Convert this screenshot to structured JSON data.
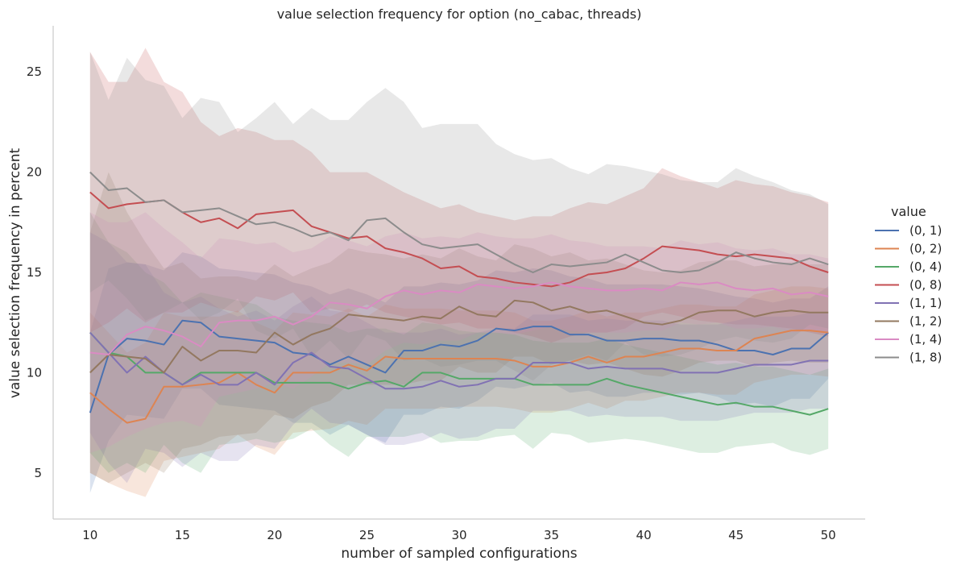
{
  "chart_data": {
    "type": "line",
    "title": "value selection frequency for option (no_cabac, threads)",
    "xlabel": "number of sampled configurations",
    "ylabel": "value selection frequency in percent",
    "xlim": [
      8.0,
      52.0
    ],
    "ylim": [
      2.7,
      27.3
    ],
    "xticks": [
      10,
      15,
      20,
      25,
      30,
      35,
      40,
      45,
      50
    ],
    "yticks": [
      5,
      10,
      15,
      20,
      25
    ],
    "grid": false,
    "legend": {
      "title": "value",
      "placement": "right"
    },
    "x": [
      10,
      11,
      12,
      13,
      14,
      15,
      16,
      17,
      18,
      19,
      20,
      21,
      22,
      23,
      24,
      25,
      26,
      27,
      28,
      29,
      30,
      31,
      32,
      33,
      34,
      35,
      36,
      37,
      38,
      39,
      40,
      41,
      42,
      43,
      44,
      45,
      46,
      47,
      48,
      49,
      50
    ],
    "series": [
      {
        "name": "(0, 1)",
        "color": "#4c72b0",
        "values": [
          8.0,
          10.9,
          11.7,
          11.6,
          11.4,
          12.6,
          12.5,
          11.8,
          11.7,
          11.6,
          11.5,
          11.0,
          10.9,
          10.4,
          10.8,
          10.4,
          10.0,
          11.1,
          11.1,
          11.4,
          11.3,
          11.6,
          12.2,
          12.1,
          12.3,
          12.3,
          11.9,
          11.9,
          11.6,
          11.6,
          11.7,
          11.7,
          11.6,
          11.6,
          11.4,
          11.1,
          11.1,
          10.9,
          11.2,
          11.2,
          12.0
        ],
        "upper": [
          12.0,
          15.2,
          15.5,
          15.4,
          15.1,
          16.0,
          15.8,
          15.2,
          15.1,
          15.0,
          14.9,
          14.5,
          14.3,
          13.9,
          14.2,
          13.9,
          13.5,
          14.3,
          14.3,
          14.5,
          14.4,
          14.6,
          15.1,
          15.0,
          15.2,
          15.1,
          14.8,
          14.7,
          14.4,
          14.4,
          14.4,
          14.4,
          14.3,
          14.2,
          14.0,
          13.8,
          13.7,
          13.5,
          13.7,
          13.7,
          14.3
        ],
        "lower": [
          4.0,
          6.6,
          7.9,
          7.8,
          7.7,
          9.2,
          9.2,
          8.4,
          8.3,
          8.2,
          8.1,
          7.5,
          7.5,
          6.9,
          7.4,
          6.9,
          6.5,
          7.9,
          7.9,
          8.3,
          8.2,
          8.6,
          9.3,
          9.2,
          9.4,
          9.5,
          9.0,
          9.1,
          8.8,
          8.8,
          9.0,
          9.0,
          8.9,
          9.0,
          8.8,
          8.4,
          8.5,
          8.3,
          8.7,
          8.7,
          9.7
        ]
      },
      {
        "name": "(0, 2)",
        "color": "#dd8452",
        "values": [
          9.0,
          8.2,
          7.5,
          7.7,
          9.3,
          9.3,
          9.4,
          9.5,
          10.0,
          9.4,
          9.0,
          10.0,
          10.0,
          10.0,
          10.4,
          10.1,
          10.8,
          10.7,
          10.7,
          10.7,
          10.7,
          10.7,
          10.7,
          10.6,
          10.3,
          10.3,
          10.5,
          10.8,
          10.5,
          10.8,
          10.8,
          11.0,
          11.2,
          11.2,
          11.1,
          11.1,
          11.7,
          11.9,
          12.1,
          12.1,
          12.0
        ],
        "upper": [
          13.0,
          12.0,
          11.0,
          11.5,
          13.0,
          12.8,
          12.8,
          12.8,
          13.1,
          12.5,
          12.1,
          13.0,
          12.9,
          12.8,
          13.2,
          12.8,
          13.4,
          13.2,
          13.2,
          13.2,
          13.1,
          13.1,
          13.1,
          13.0,
          12.6,
          12.6,
          12.8,
          13.1,
          12.8,
          13.0,
          13.0,
          13.2,
          13.4,
          13.4,
          13.3,
          13.3,
          13.9,
          14.1,
          14.3,
          14.3,
          14.2
        ],
        "lower": [
          5.0,
          4.5,
          4.1,
          3.8,
          5.6,
          5.8,
          6.0,
          6.2,
          6.9,
          6.3,
          5.9,
          7.0,
          7.1,
          7.2,
          7.6,
          7.4,
          8.2,
          8.2,
          8.2,
          8.2,
          8.3,
          8.3,
          8.3,
          8.2,
          8.0,
          8.0,
          8.2,
          8.5,
          8.2,
          8.6,
          8.6,
          8.8,
          9.0,
          9.0,
          8.9,
          8.9,
          9.5,
          9.7,
          9.9,
          9.9,
          9.8
        ]
      },
      {
        "name": "(0, 4)",
        "color": "#55a868",
        "values": [
          12.0,
          11.0,
          10.8,
          10.0,
          10.0,
          9.4,
          10.0,
          10.0,
          10.0,
          10.0,
          9.5,
          9.5,
          9.5,
          9.5,
          9.2,
          9.5,
          9.6,
          9.3,
          10.0,
          10.0,
          9.7,
          9.7,
          9.7,
          9.7,
          9.4,
          9.4,
          9.4,
          9.4,
          9.7,
          9.4,
          9.2,
          9.0,
          8.8,
          8.6,
          8.4,
          8.5,
          8.3,
          8.3,
          8.1,
          7.9,
          8.2
        ],
        "upper": [
          18.0,
          16.5,
          16.0,
          15.0,
          14.5,
          13.5,
          14.0,
          13.8,
          13.6,
          13.4,
          12.8,
          12.6,
          12.5,
          12.4,
          12.0,
          12.2,
          12.2,
          11.9,
          12.5,
          12.4,
          12.1,
          12.0,
          12.0,
          11.9,
          11.6,
          11.5,
          11.5,
          11.5,
          11.7,
          11.4,
          11.2,
          11.0,
          10.8,
          10.6,
          10.4,
          10.5,
          10.3,
          10.3,
          10.1,
          9.9,
          10.2
        ],
        "lower": [
          6.0,
          5.0,
          5.5,
          5.0,
          6.4,
          5.5,
          5.0,
          6.4,
          6.5,
          6.7,
          6.5,
          6.7,
          7.2,
          6.4,
          5.8,
          6.8,
          6.8,
          6.8,
          7.0,
          6.5,
          6.6,
          6.6,
          6.8,
          6.9,
          6.2,
          7.0,
          6.9,
          6.5,
          6.6,
          6.7,
          6.6,
          6.4,
          6.2,
          6.0,
          6.0,
          6.3,
          6.4,
          6.5,
          6.1,
          5.9,
          6.2
        ]
      },
      {
        "name": "(0, 8)",
        "color": "#c44e52",
        "values": [
          19.0,
          18.2,
          18.4,
          18.5,
          18.6,
          18.0,
          17.5,
          17.7,
          17.2,
          17.9,
          18.0,
          18.1,
          17.3,
          17.0,
          16.7,
          16.8,
          16.2,
          16.0,
          15.7,
          15.2,
          15.3,
          14.8,
          14.7,
          14.5,
          14.4,
          14.3,
          14.5,
          14.9,
          15.0,
          15.2,
          15.7,
          16.3,
          16.2,
          16.1,
          15.9,
          15.8,
          15.9,
          15.8,
          15.7,
          15.3,
          15.0
        ],
        "upper": [
          26.0,
          24.5,
          24.5,
          26.2,
          24.5,
          24.0,
          22.5,
          21.8,
          22.2,
          22.0,
          21.6,
          21.6,
          21.0,
          20.0,
          20.0,
          20.0,
          19.5,
          19.0,
          18.6,
          18.2,
          18.4,
          18.0,
          17.8,
          17.6,
          17.8,
          17.8,
          18.2,
          18.5,
          18.4,
          18.8,
          19.2,
          20.2,
          19.8,
          19.5,
          19.2,
          19.6,
          19.4,
          19.3,
          19.0,
          18.8,
          18.5
        ],
        "lower": [
          12.0,
          12.5,
          13.2,
          12.5,
          13.0,
          13.0,
          13.5,
          13.2,
          13.0,
          13.8,
          13.6,
          14.0,
          13.0,
          13.2,
          13.0,
          13.4,
          13.0,
          12.8,
          12.6,
          12.4,
          12.5,
          12.2,
          12.2,
          12.0,
          11.8,
          11.5,
          11.8,
          12.0,
          12.0,
          12.2,
          12.8,
          13.0,
          12.8,
          12.6,
          12.5,
          12.4,
          12.4,
          12.3,
          12.2,
          12.0,
          11.8
        ]
      },
      {
        "name": "(1, 1)",
        "color": "#8172b3",
        "values": [
          12.0,
          11.0,
          10.0,
          10.8,
          10.0,
          9.4,
          9.9,
          9.4,
          9.4,
          10.0,
          9.4,
          10.5,
          11.0,
          10.3,
          10.2,
          9.7,
          9.2,
          9.2,
          9.3,
          9.6,
          9.3,
          9.4,
          9.7,
          9.7,
          10.5,
          10.5,
          10.5,
          10.2,
          10.3,
          10.2,
          10.2,
          10.2,
          10.0,
          10.0,
          10.0,
          10.2,
          10.4,
          10.4,
          10.4,
          10.6,
          10.6
        ],
        "upper": [
          17.0,
          16.5,
          15.5,
          15.4,
          14.0,
          13.5,
          13.8,
          13.2,
          12.8,
          13.1,
          12.6,
          13.3,
          13.8,
          13.1,
          13.0,
          12.5,
          12.0,
          12.0,
          12.0,
          12.2,
          11.9,
          12.0,
          12.2,
          12.2,
          12.9,
          12.9,
          12.9,
          12.6,
          12.7,
          12.6,
          12.6,
          12.6,
          12.4,
          12.4,
          12.4,
          12.6,
          12.8,
          12.8,
          12.8,
          13.0,
          13.0
        ],
        "lower": [
          7.0,
          5.5,
          4.5,
          6.2,
          6.0,
          5.3,
          6.0,
          5.6,
          5.6,
          6.4,
          6.2,
          7.4,
          8.2,
          7.5,
          7.4,
          6.9,
          6.4,
          6.4,
          6.6,
          7.0,
          6.7,
          6.8,
          7.2,
          7.2,
          8.1,
          8.1,
          8.1,
          7.8,
          7.9,
          7.8,
          7.8,
          7.8,
          7.6,
          7.6,
          7.6,
          7.8,
          8.0,
          8.0,
          8.0,
          8.2,
          8.2
        ]
      },
      {
        "name": "(1, 2)",
        "color": "#937860",
        "values": [
          10.0,
          10.9,
          10.8,
          10.7,
          10.0,
          11.3,
          10.6,
          11.1,
          11.1,
          11.0,
          12.0,
          11.4,
          11.9,
          12.2,
          12.9,
          12.8,
          12.7,
          12.6,
          12.8,
          12.7,
          13.3,
          12.9,
          12.8,
          13.6,
          13.5,
          13.1,
          13.3,
          13.0,
          13.1,
          12.8,
          12.5,
          12.4,
          12.6,
          13.0,
          13.1,
          13.1,
          12.8,
          13.0,
          13.1,
          13.0,
          13.0
        ],
        "upper": [
          17.0,
          20.0,
          18.0,
          16.5,
          15.2,
          15.5,
          14.7,
          14.8,
          14.8,
          14.6,
          15.4,
          14.8,
          15.2,
          15.5,
          16.2,
          16.0,
          15.9,
          15.7,
          15.9,
          15.7,
          16.2,
          15.8,
          15.6,
          16.4,
          16.2,
          15.8,
          16.0,
          15.6,
          15.7,
          15.4,
          15.1,
          15.0,
          15.1,
          15.5,
          15.6,
          15.6,
          15.3,
          15.4,
          15.5,
          15.4,
          15.4
        ],
        "lower": [
          5.0,
          4.5,
          5.0,
          5.5,
          5.0,
          6.2,
          6.4,
          6.8,
          6.9,
          7.0,
          7.9,
          7.7,
          8.3,
          8.6,
          9.4,
          9.4,
          9.4,
          9.4,
          9.6,
          9.6,
          10.3,
          10.0,
          10.0,
          10.8,
          10.8,
          10.4,
          10.6,
          10.4,
          10.5,
          10.2,
          9.9,
          9.8,
          10.1,
          10.5,
          10.6,
          10.6,
          10.3,
          10.5,
          10.6,
          10.5,
          10.5
        ]
      },
      {
        "name": "(1, 4)",
        "color": "#da8bc3",
        "values": [
          11.0,
          10.9,
          11.9,
          12.3,
          12.1,
          11.8,
          11.3,
          12.5,
          12.6,
          12.6,
          12.8,
          12.4,
          12.8,
          13.5,
          13.4,
          13.2,
          13.8,
          14.1,
          13.9,
          14.1,
          14.0,
          14.4,
          14.3,
          14.2,
          14.3,
          14.5,
          14.3,
          14.2,
          14.1,
          14.1,
          14.2,
          14.1,
          14.5,
          14.4,
          14.5,
          14.2,
          14.1,
          14.2,
          13.9,
          14.0,
          13.8
        ],
        "upper": [
          18.0,
          17.5,
          17.5,
          18.0,
          17.2,
          16.5,
          15.7,
          16.7,
          16.6,
          16.4,
          16.5,
          16.0,
          16.2,
          16.8,
          16.6,
          16.3,
          16.8,
          17.0,
          16.7,
          16.8,
          16.7,
          17.0,
          16.8,
          16.7,
          16.7,
          16.9,
          16.6,
          16.5,
          16.3,
          16.3,
          16.3,
          16.2,
          16.6,
          16.4,
          16.5,
          16.2,
          16.1,
          16.2,
          15.9,
          15.9,
          15.7
        ],
        "lower": [
          6.0,
          6.3,
          6.8,
          7.2,
          7.5,
          7.6,
          7.3,
          8.8,
          9.0,
          9.2,
          9.5,
          9.2,
          9.8,
          10.5,
          10.5,
          10.4,
          11.1,
          11.5,
          11.4,
          11.6,
          11.6,
          12.0,
          12.0,
          11.9,
          12.1,
          12.3,
          12.1,
          12.0,
          12.0,
          12.0,
          12.1,
          12.1,
          12.5,
          12.4,
          12.5,
          12.2,
          12.2,
          12.3,
          12.0,
          12.1,
          11.9
        ]
      },
      {
        "name": "(1, 8)",
        "color": "#8c8c8c",
        "values": [
          20.0,
          19.1,
          19.2,
          18.5,
          18.6,
          18.0,
          18.1,
          18.2,
          17.8,
          17.4,
          17.5,
          17.2,
          16.8,
          17.0,
          16.6,
          17.6,
          17.7,
          17.0,
          16.4,
          16.2,
          16.3,
          16.4,
          15.9,
          15.4,
          15.0,
          15.4,
          15.3,
          15.4,
          15.5,
          15.9,
          15.5,
          15.1,
          15.0,
          15.1,
          15.5,
          16.0,
          15.7,
          15.5,
          15.4,
          15.7,
          15.4
        ],
        "upper": [
          26.0,
          23.6,
          25.7,
          24.6,
          24.3,
          22.7,
          23.7,
          23.5,
          22.0,
          22.7,
          23.5,
          22.4,
          23.2,
          22.6,
          22.6,
          23.5,
          24.2,
          23.5,
          22.2,
          22.4,
          22.4,
          22.4,
          21.4,
          20.9,
          20.6,
          20.7,
          20.2,
          19.9,
          20.4,
          20.3,
          20.1,
          19.9,
          19.6,
          19.5,
          19.5,
          20.2,
          19.8,
          19.5,
          19.1,
          18.9,
          18.4
        ],
        "lower": [
          14.0,
          14.6,
          13.7,
          12.6,
          13.0,
          13.5,
          12.6,
          13.0,
          13.7,
          12.1,
          11.7,
          12.2,
          10.8,
          11.6,
          10.7,
          11.9,
          11.6,
          10.6,
          10.7,
          10.3,
          10.4,
          10.6,
          10.6,
          10.1,
          9.6,
          10.4,
          10.6,
          10.9,
          10.6,
          11.5,
          10.9,
          10.8,
          10.9,
          11.2,
          11.6,
          11.8,
          11.6,
          11.5,
          11.7,
          12.4,
          12.2
        ]
      }
    ]
  }
}
